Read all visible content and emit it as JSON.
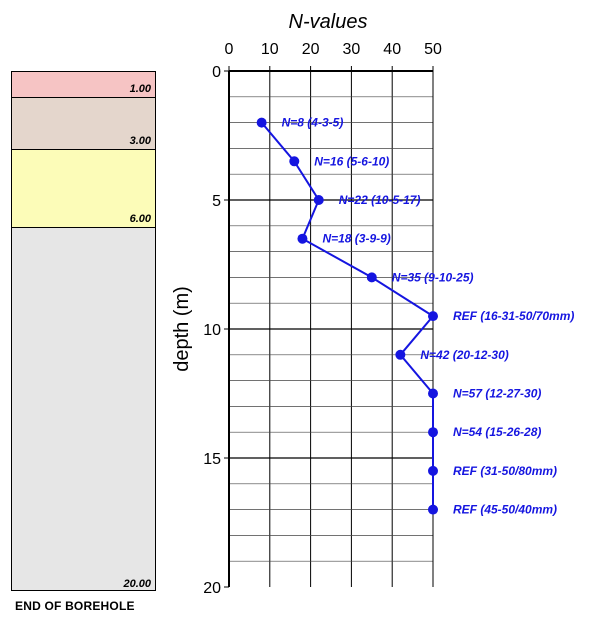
{
  "borehole": {
    "layers": [
      {
        "top": 0,
        "bottom": 1.0,
        "label": "1.00",
        "color": "#f6c4c4"
      },
      {
        "top": 1.0,
        "bottom": 3.0,
        "label": "3.00",
        "color": "#e4d6cc"
      },
      {
        "top": 3.0,
        "bottom": 6.0,
        "label": "6.00",
        "color": "#fcfcb8"
      },
      {
        "top": 6.0,
        "bottom": 20.0,
        "label": "20.00",
        "color": "#e6e6e6"
      }
    ],
    "end_label": "END OF BOREHOLE"
  },
  "chart_data": {
    "type": "line",
    "title": "N-values",
    "ylabel": "depth (m)",
    "xlim": [
      0,
      50
    ],
    "ylim": [
      20,
      0
    ],
    "x_ticks": [
      "0",
      "10",
      "20",
      "30",
      "40",
      "50"
    ],
    "y_ticks": [
      "0",
      "5",
      "10",
      "15",
      "20"
    ],
    "grid": true,
    "series_color": "#1515e0",
    "points": [
      {
        "n": 8,
        "depth": 2.0,
        "label": "N=8 (4-3-5)"
      },
      {
        "n": 16,
        "depth": 3.5,
        "label": "N=16 (5-6-10)"
      },
      {
        "n": 22,
        "depth": 5.0,
        "label": "N=22 (10-5-17)"
      },
      {
        "n": 18,
        "depth": 6.5,
        "label": "N=18 (3-9-9)"
      },
      {
        "n": 35,
        "depth": 8.0,
        "label": "N=35 (9-10-25)"
      },
      {
        "n": 50,
        "depth": 9.5,
        "label": "REF (16-31-50/70mm)"
      },
      {
        "n": 42,
        "depth": 11.0,
        "label": "N=42 (20-12-30)"
      },
      {
        "n": 50,
        "depth": 12.5,
        "label": "N=57 (12-27-30)"
      },
      {
        "n": 50,
        "depth": 14.0,
        "label": "N=54 (15-26-28)"
      },
      {
        "n": 50,
        "depth": 15.5,
        "label": "REF (31-50/80mm)"
      },
      {
        "n": 50,
        "depth": 17.0,
        "label": "REF (45-50/40mm)"
      }
    ]
  }
}
